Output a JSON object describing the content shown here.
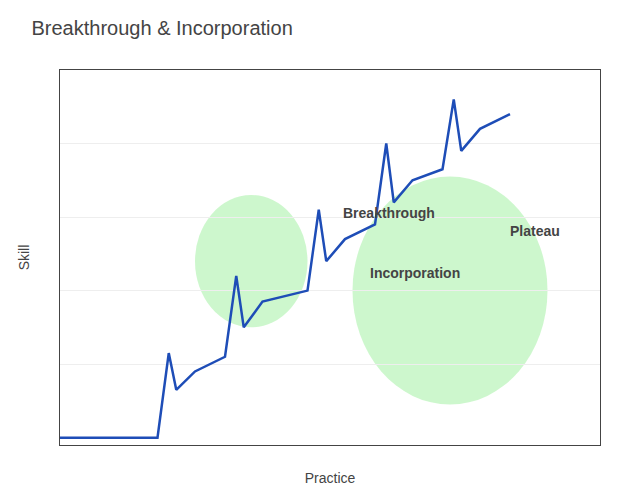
{
  "chart_data": {
    "type": "line",
    "title": "Breakthrough & Incorporation",
    "xlabel": "Practice",
    "ylabel": "Skill",
    "x": [
      0.0,
      0.13,
      0.13,
      0.145,
      0.155,
      0.18,
      0.18,
      0.22,
      0.22,
      0.235,
      0.245,
      0.27,
      0.27,
      0.33,
      0.33,
      0.345,
      0.355,
      0.38,
      0.38,
      0.42,
      0.42,
      0.435,
      0.445,
      0.47,
      0.47,
      0.51,
      0.51,
      0.525,
      0.535,
      0.56,
      0.56,
      0.6
    ],
    "values": [
      0.0,
      0.0,
      0.0,
      0.23,
      0.13,
      0.18,
      0.18,
      0.22,
      0.22,
      0.44,
      0.3,
      0.37,
      0.37,
      0.4,
      0.4,
      0.62,
      0.48,
      0.54,
      0.54,
      0.58,
      0.58,
      0.8,
      0.64,
      0.7,
      0.7,
      0.73,
      0.73,
      0.92,
      0.78,
      0.84,
      0.84,
      0.88
    ],
    "color": "#1E4DB7",
    "highlights": [
      {
        "x": 0.255,
        "y": 0.48,
        "rx": 0.075,
        "ry": 0.18,
        "color": "#90EE90"
      },
      {
        "x": 0.52,
        "y": 0.4,
        "rx": 0.13,
        "ry": 0.31,
        "color": "#90EE90"
      }
    ],
    "annotations": [
      "Breakthrough",
      "Incorporation",
      "Plateau"
    ],
    "xlim": [
      0.0,
      0.72
    ],
    "ylim": [
      -0.02,
      1.0
    ],
    "xticks": [],
    "yticks": [
      0.2,
      0.4,
      0.6,
      0.8
    ],
    "grid": true,
    "tick_labels": false
  }
}
